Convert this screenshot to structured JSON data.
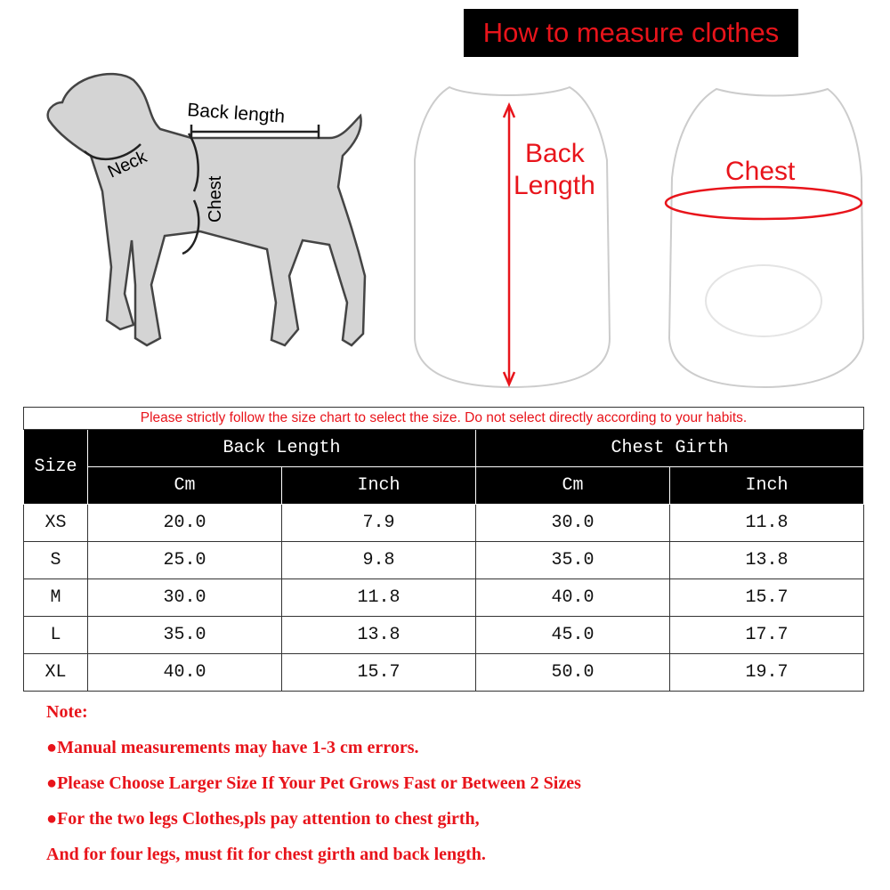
{
  "title": "How to measure clothes",
  "dog_labels": {
    "back_length": "Back length",
    "neck": "Neck",
    "chest": "Chest"
  },
  "shirt_labels": {
    "back_length_1": "Back",
    "back_length_2": "Length",
    "chest": "Chest"
  },
  "colors": {
    "accent_red": "#e8141b",
    "header_bg": "#000000"
  },
  "table": {
    "notice": "Please strictly follow the size chart to select the size. Do not select directly according to your habits.",
    "size_header": "Size",
    "group_headers": [
      "Back Length",
      "Chest Girth"
    ],
    "sub_headers": [
      "Cm",
      "Inch",
      "Cm",
      "Inch"
    ],
    "rows": [
      [
        "XS",
        "20.0",
        "7.9",
        "30.0",
        "11.8"
      ],
      [
        "S",
        "25.0",
        "9.8",
        "35.0",
        "13.8"
      ],
      [
        "M",
        "30.0",
        "11.8",
        "40.0",
        "15.7"
      ],
      [
        "L",
        "35.0",
        "13.8",
        "45.0",
        "17.7"
      ],
      [
        "XL",
        "40.0",
        "15.7",
        "50.0",
        "19.7"
      ]
    ]
  },
  "notes": [
    "Note:",
    "●Manual measurements may have 1-3 cm errors.",
    "●Please Choose Larger Size If Your Pet Grows Fast or Between 2 Sizes",
    "●For the two legs Clothes,pls pay attention to chest girth,",
    "And for four legs, must fit for chest girth and back length."
  ]
}
